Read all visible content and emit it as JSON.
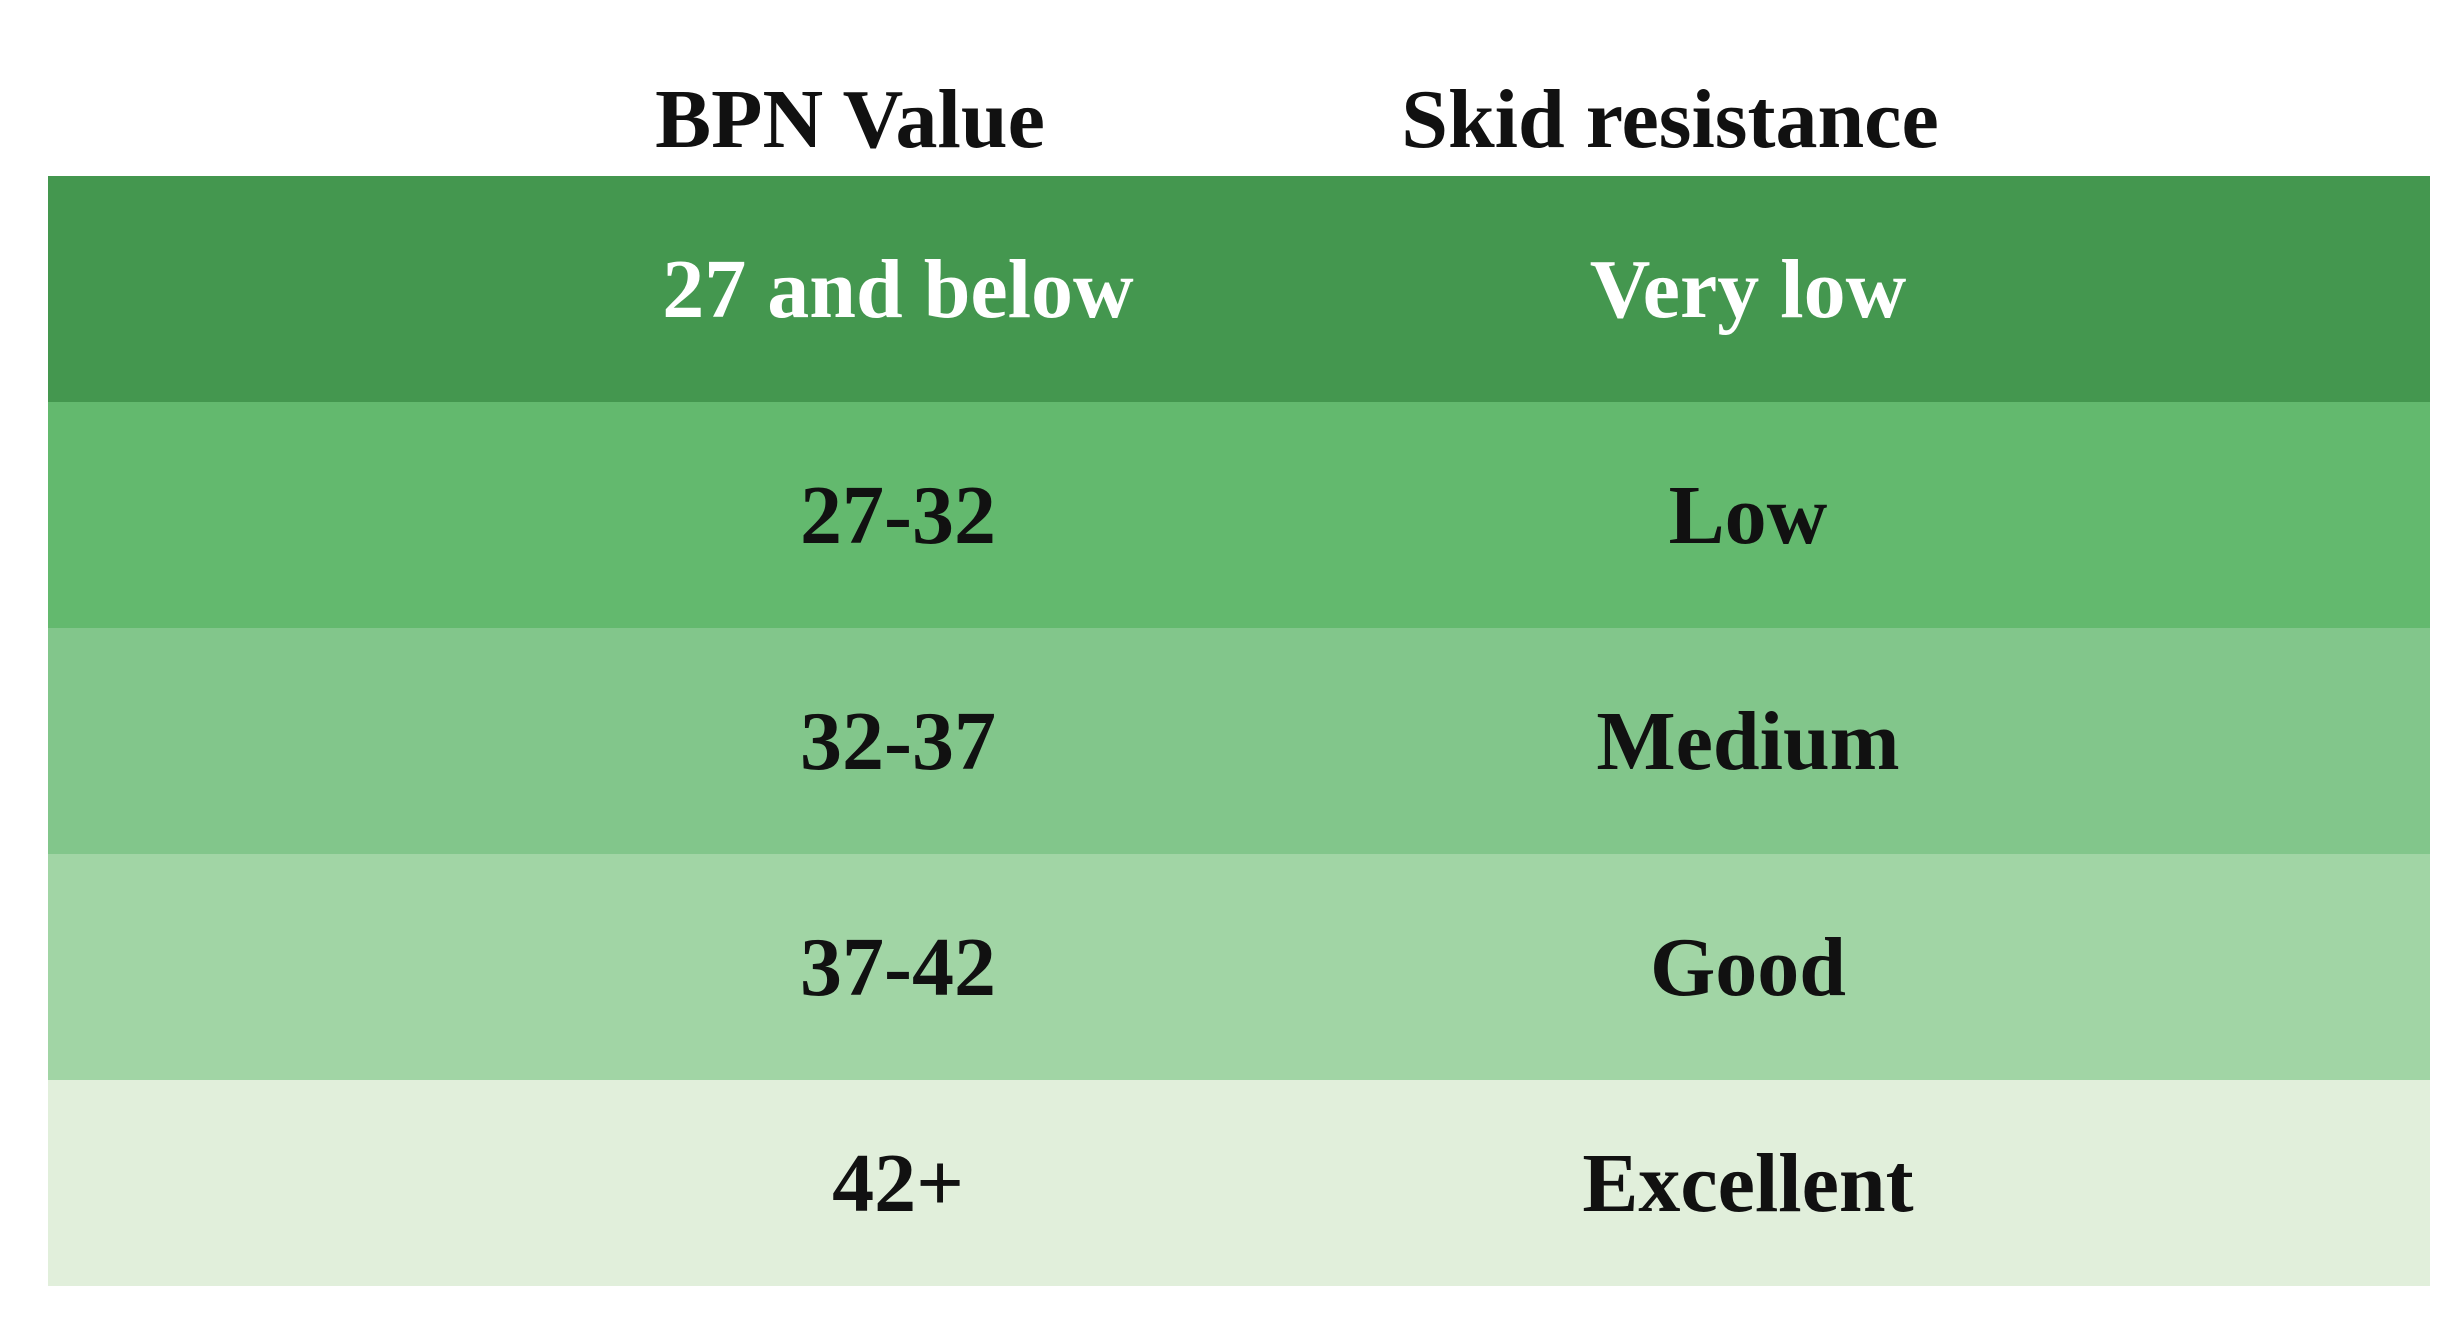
{
  "header": {
    "bpn_label": "BPN Value",
    "skid_label": "Skid resistance"
  },
  "rows": [
    {
      "bpn": "27 and below",
      "skid": "Very low",
      "bg": "#44974f",
      "text_color": "#ffffff"
    },
    {
      "bpn": "27-32",
      "skid": "Low",
      "bg": "#63b96e",
      "text_color": "#111111"
    },
    {
      "bpn": "32-37",
      "skid": "Medium",
      "bg": "#82c68b",
      "text_color": "#111111"
    },
    {
      "bpn": "37-42",
      "skid": "Good",
      "bg": "#a1d5a5",
      "text_color": "#111111"
    },
    {
      "bpn": "42+",
      "skid": "Excellent",
      "bg": "#e1efdb",
      "text_color": "#111111"
    }
  ]
}
